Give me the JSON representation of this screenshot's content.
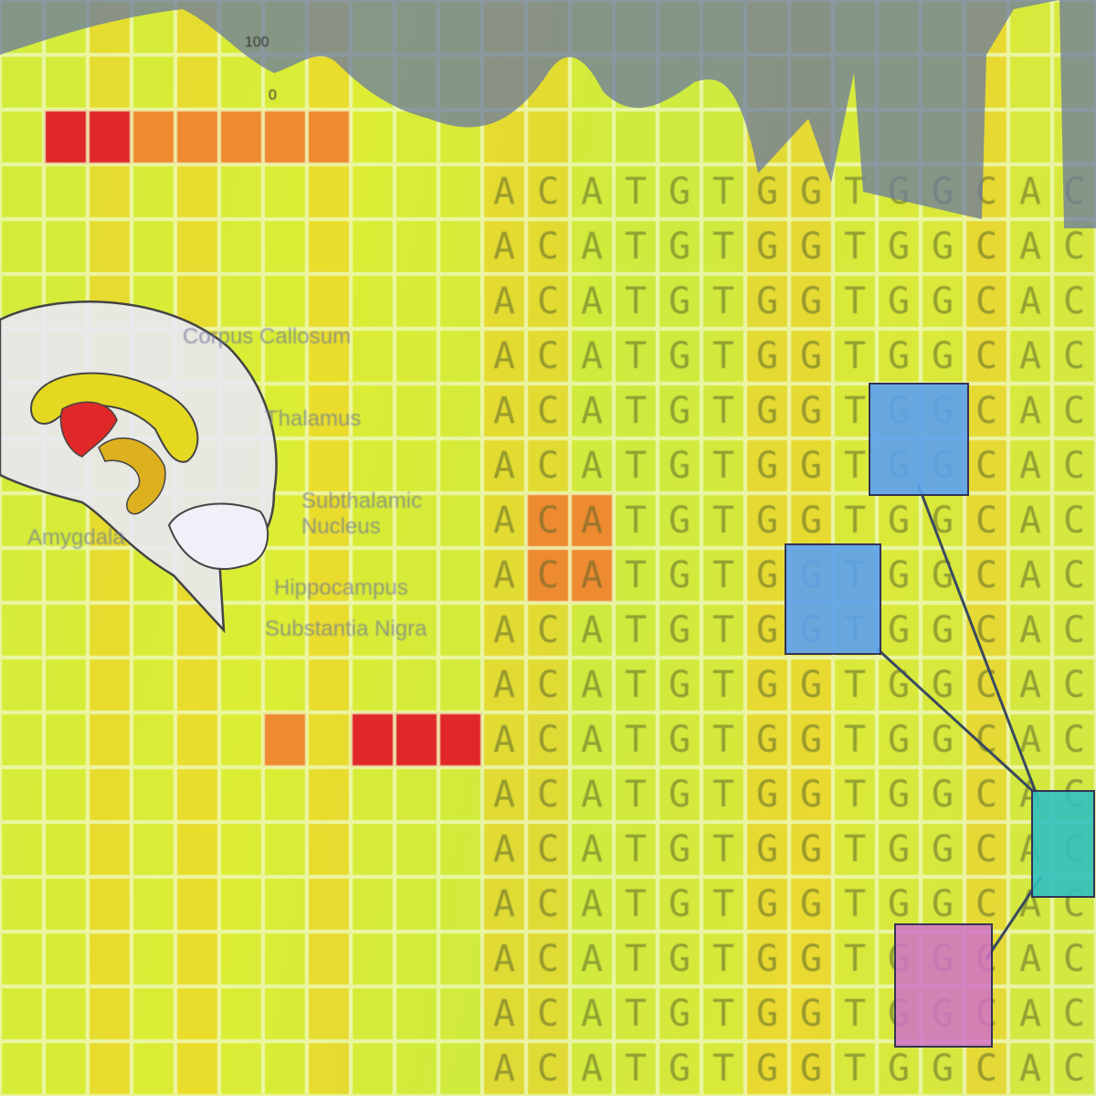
{
  "trace": {
    "tick_100": "100",
    "tick_0": "0"
  },
  "sequence": [
    "A",
    "C",
    "A",
    "T",
    "G",
    "T",
    "G",
    "G",
    "T",
    "G",
    "G",
    "C"
  ],
  "brain_labels": {
    "corpus_callosum": "Corpus Callosum",
    "thalamus": "Thalamus",
    "subthalamic": "Subthalamic Nucleus",
    "hippocampus": "Hippocampus",
    "substantia_nigra": "Substantia Nigra",
    "amygdala": "Amygdala"
  },
  "colors": {
    "red": "#e02828",
    "orange": "#ee8a30",
    "blue": "#5aa0f0",
    "teal": "#30c0c0",
    "pink": "#d070c8",
    "trace": "#6a7aa0"
  }
}
